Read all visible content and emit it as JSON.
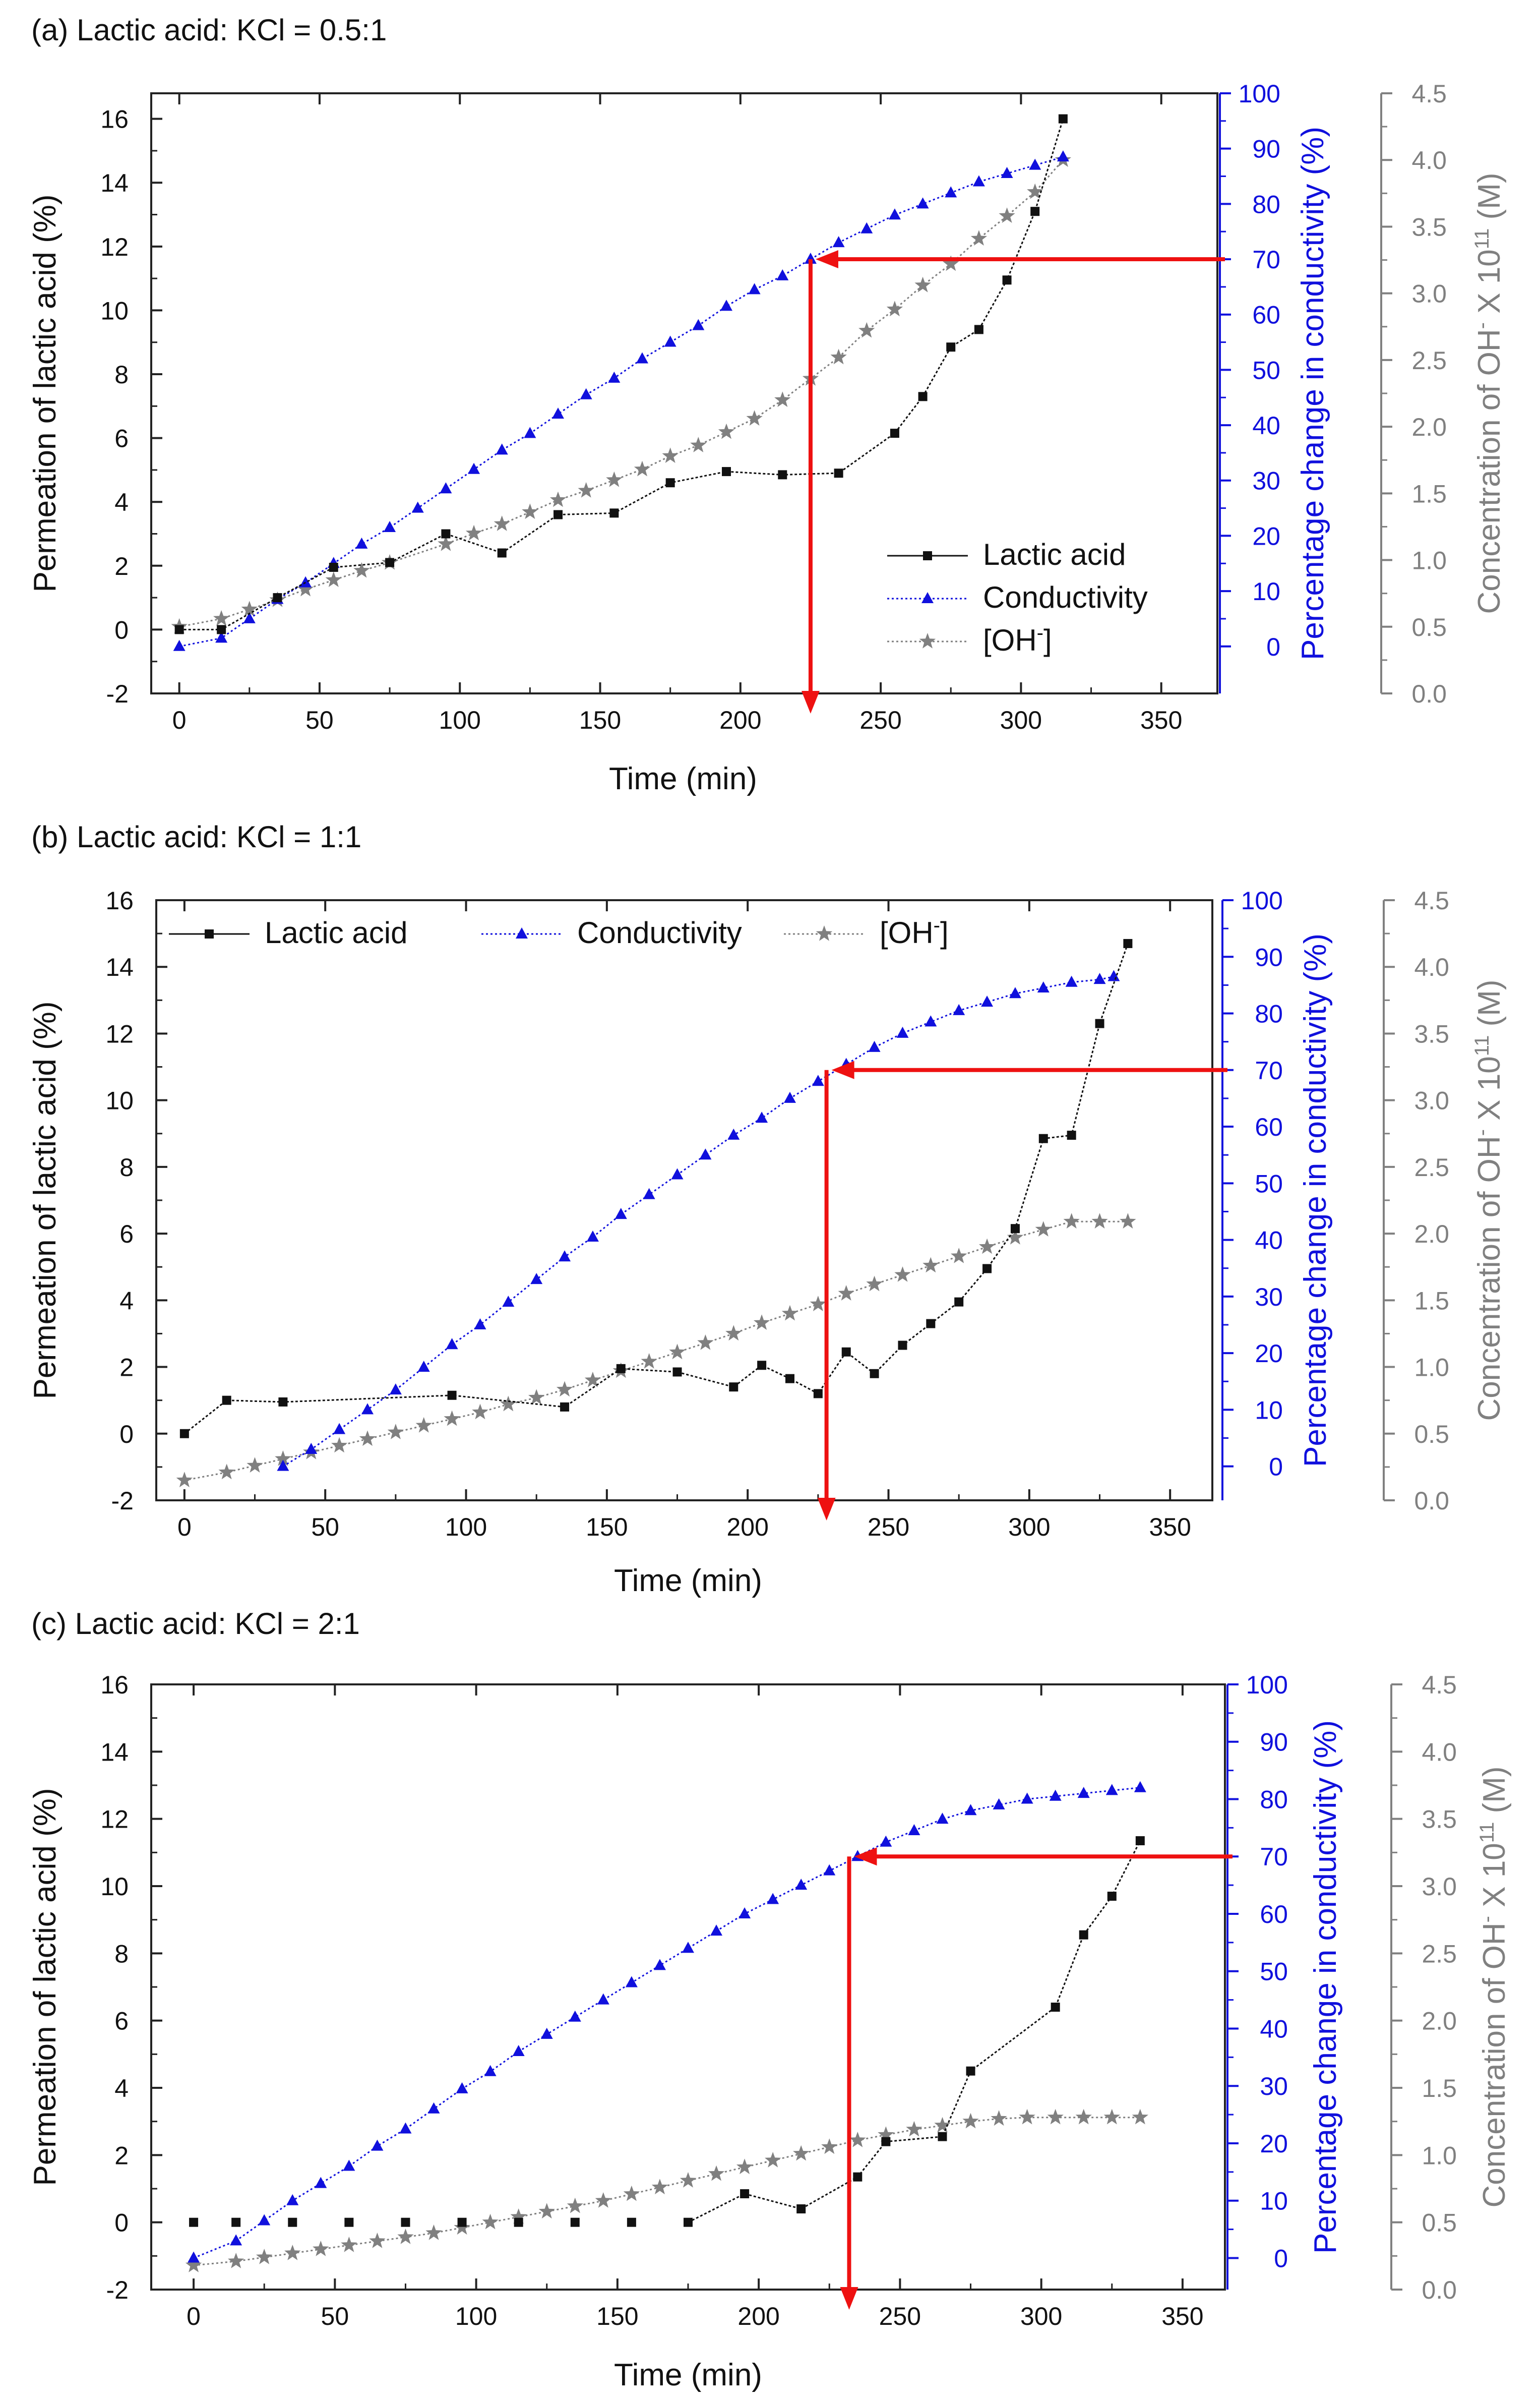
{
  "colors": {
    "lactic": "#111111",
    "conductivity": "#1010dd",
    "oh": "#808080",
    "arrow": "#ee1111",
    "frame": "#222222"
  },
  "chart_data": [
    {
      "type": "line",
      "panel": "a",
      "title": "(a) Lactic acid: KCl = 0.5:1",
      "xlabel": "Time (min)",
      "ylabel_left": "Permeation of lactic acid (%)",
      "ylabel_right1": "Percentage change in conductivity (%)",
      "ylabel_right2_main": "Concentration of OH",
      "ylabel_right2_sup1": "-",
      "ylabel_right2_mid": " X 10",
      "ylabel_right2_sup2": "11",
      "ylabel_right2_end": " (M)",
      "xlim": [
        -10,
        370
      ],
      "ylim_left": [
        -2,
        16.8
      ],
      "ylim_right1": [
        -8.5,
        100
      ],
      "ylim_right2": [
        0,
        4.5
      ],
      "x_ticks": [
        0,
        50,
        100,
        150,
        200,
        250,
        300,
        350
      ],
      "left_ticks": [
        -2,
        0,
        2,
        4,
        6,
        8,
        10,
        12,
        14,
        16
      ],
      "right1_ticks": [
        0,
        10,
        20,
        30,
        40,
        50,
        60,
        70,
        80,
        90,
        100
      ],
      "right2_ticks": [
        "0.0",
        "0.5",
        "1.0",
        "1.5",
        "2.0",
        "2.5",
        "3.0",
        "3.5",
        "4.0",
        "4.5"
      ],
      "legend": {
        "placement": "bottom-right",
        "entries": [
          {
            "label": "Lactic acid",
            "sup": ""
          },
          {
            "label": "Conductivity",
            "sup": ""
          },
          {
            "label": "[OH",
            "sup": "-",
            "suffix": "]"
          }
        ]
      },
      "series": [
        {
          "name": "Lactic acid",
          "axis": "left",
          "marker": "square",
          "dotted": true,
          "x": [
            0,
            15,
            35,
            55,
            75,
            95,
            115,
            135,
            155,
            175,
            195,
            215,
            235,
            255,
            265,
            275,
            285,
            295,
            305,
            315
          ],
          "y": [
            0,
            0,
            1.0,
            1.95,
            2.1,
            3.0,
            2.4,
            3.6,
            3.65,
            4.6,
            4.95,
            4.85,
            4.9,
            6.15,
            7.3,
            8.85,
            9.4,
            10.95,
            13.1,
            16.0
          ]
        },
        {
          "name": "Conductivity",
          "axis": "right1",
          "marker": "triangle",
          "dotted": true,
          "x": [
            0,
            15,
            25,
            35,
            45,
            55,
            65,
            75,
            85,
            95,
            105,
            115,
            125,
            135,
            145,
            155,
            165,
            175,
            185,
            195,
            205,
            215,
            225,
            235,
            245,
            255,
            265,
            275,
            285,
            295,
            305,
            315
          ],
          "y": [
            0,
            1.5,
            5,
            8.5,
            11.5,
            15,
            18.5,
            21.5,
            25,
            28.5,
            32,
            35.5,
            38.5,
            42,
            45.5,
            48.5,
            52,
            55,
            58,
            61.5,
            64.5,
            67,
            70,
            73,
            75.5,
            78,
            80,
            82,
            84,
            85.5,
            87,
            88.5
          ]
        },
        {
          "name": "[OH-]",
          "axis": "right2",
          "marker": "star",
          "dotted": true,
          "x": [
            0,
            15,
            25,
            35,
            45,
            55,
            65,
            75,
            95,
            105,
            115,
            125,
            135,
            145,
            155,
            165,
            175,
            185,
            195,
            205,
            215,
            225,
            235,
            245,
            255,
            265,
            275,
            285,
            295,
            305,
            315
          ],
          "y": [
            0.5,
            0.56,
            0.63,
            0.7,
            0.78,
            0.85,
            0.92,
            0.98,
            1.12,
            1.2,
            1.27,
            1.36,
            1.45,
            1.52,
            1.6,
            1.68,
            1.78,
            1.86,
            1.96,
            2.06,
            2.2,
            2.36,
            2.52,
            2.72,
            2.88,
            3.06,
            3.22,
            3.41,
            3.58,
            3.76,
            4.0
          ]
        }
      ],
      "annotation": {
        "x": 225,
        "conductivity": 70,
        "description": "arrows"
      }
    },
    {
      "type": "line",
      "panel": "b",
      "title": "(b) Lactic acid: KCl = 1:1",
      "xlabel": "Time (min)",
      "ylabel_left": "Permeation of lactic acid (%)",
      "ylabel_right1": "Percentage change in conductivity (%)",
      "ylabel_right2_main": "Concentration of OH",
      "ylabel_right2_sup1": "-",
      "ylabel_right2_mid": " X 10",
      "ylabel_right2_sup2": "11",
      "ylabel_right2_end": " (M)",
      "xlim": [
        -10,
        365
      ],
      "ylim_left": [
        -2,
        16
      ],
      "ylim_right1": [
        -6,
        100
      ],
      "ylim_right2": [
        0,
        4.5
      ],
      "x_ticks": [
        0,
        50,
        100,
        150,
        200,
        250,
        300,
        350
      ],
      "left_ticks": [
        -2,
        0,
        2,
        4,
        6,
        8,
        10,
        12,
        14,
        16
      ],
      "right1_ticks": [
        0,
        10,
        20,
        30,
        40,
        50,
        60,
        70,
        80,
        90,
        100
      ],
      "right2_ticks": [
        "0.0",
        "0.5",
        "1.0",
        "1.5",
        "2.0",
        "2.5",
        "3.0",
        "3.5",
        "4.0",
        "4.5"
      ],
      "legend": {
        "placement": "top-left",
        "entries": [
          {
            "label": "Lactic acid",
            "sup": ""
          },
          {
            "label": "Conductivity",
            "sup": ""
          },
          {
            "label": "[OH",
            "sup": "-",
            "suffix": "]"
          }
        ]
      },
      "series": [
        {
          "name": "Lactic acid",
          "axis": "left",
          "marker": "square",
          "dotted": true,
          "x": [
            0,
            15,
            35,
            95,
            135,
            155,
            175,
            195,
            205,
            215,
            225,
            235,
            245,
            255,
            265,
            275,
            285,
            295,
            305,
            315,
            325,
            335
          ],
          "y": [
            0,
            1.0,
            0.95,
            1.15,
            0.8,
            1.95,
            1.85,
            1.4,
            2.05,
            1.65,
            1.2,
            2.45,
            1.8,
            2.65,
            3.3,
            3.95,
            4.95,
            6.15,
            8.85,
            8.95,
            12.3,
            14.7
          ]
        },
        {
          "name": "Conductivity",
          "axis": "right1",
          "marker": "triangle",
          "dotted": true,
          "x": [
            35,
            45,
            55,
            65,
            75,
            85,
            95,
            105,
            115,
            125,
            135,
            145,
            155,
            165,
            175,
            185,
            195,
            205,
            215,
            225,
            235,
            245,
            255,
            265,
            275,
            285,
            295,
            305,
            315,
            325,
            330
          ],
          "y": [
            0,
            3,
            6.5,
            10,
            13.5,
            17.5,
            21.5,
            25,
            29,
            33,
            37,
            40.5,
            44.5,
            48,
            51.5,
            55,
            58.5,
            61.5,
            65,
            68,
            71,
            74,
            76.5,
            78.5,
            80.5,
            82,
            83.5,
            84.5,
            85.5,
            86,
            86.5
          ]
        },
        {
          "name": "[OH-]",
          "axis": "right2",
          "marker": "star",
          "dotted": true,
          "x": [
            0,
            15,
            25,
            35,
            45,
            55,
            65,
            75,
            85,
            95,
            105,
            115,
            125,
            135,
            145,
            155,
            165,
            175,
            185,
            195,
            205,
            215,
            225,
            235,
            245,
            255,
            265,
            275,
            285,
            295,
            305,
            315,
            325,
            335
          ],
          "y": [
            0.15,
            0.21,
            0.26,
            0.31,
            0.36,
            0.41,
            0.46,
            0.51,
            0.56,
            0.61,
            0.66,
            0.72,
            0.77,
            0.83,
            0.9,
            0.97,
            1.04,
            1.11,
            1.18,
            1.25,
            1.33,
            1.4,
            1.47,
            1.55,
            1.62,
            1.69,
            1.76,
            1.83,
            1.9,
            1.97,
            2.03,
            2.09,
            2.09,
            2.09
          ]
        }
      ],
      "annotation": {
        "x": 228,
        "conductivity": 70,
        "description": "arrows"
      }
    },
    {
      "type": "line",
      "panel": "c",
      "title": "(c) Lactic acid: KCl = 2:1",
      "xlabel": "Time (min)",
      "ylabel_left": "Permeation of lactic acid (%)",
      "ylabel_right1": "Percentage change in conductivity (%)",
      "ylabel_right2_main": "Concentration of OH",
      "ylabel_right2_sup1": "-",
      "ylabel_right2_mid": " X 10",
      "ylabel_right2_sup2": "11",
      "ylabel_right2_end": " (M)",
      "xlim": [
        -15,
        365
      ],
      "ylim_left": [
        -2,
        16
      ],
      "ylim_right1": [
        -5.5,
        100
      ],
      "ylim_right2": [
        0,
        4.5
      ],
      "x_ticks": [
        0,
        50,
        100,
        150,
        200,
        250,
        300,
        350
      ],
      "left_ticks": [
        -2,
        0,
        2,
        4,
        6,
        8,
        10,
        12,
        14,
        16
      ],
      "right1_ticks": [
        0,
        10,
        20,
        30,
        40,
        50,
        60,
        70,
        80,
        90,
        100
      ],
      "right2_ticks": [
        "0.0",
        "0.5",
        "1.0",
        "1.5",
        "2.0",
        "2.5",
        "3.0",
        "3.5",
        "4.0",
        "4.5"
      ],
      "legend": null,
      "series": [
        {
          "name": "Lactic acid",
          "axis": "left",
          "marker": "square",
          "dotted": true,
          "gap_before_index": 9,
          "x": [
            0,
            15,
            35,
            55,
            75,
            95,
            115,
            135,
            155,
            175,
            195,
            215,
            235,
            245,
            265,
            275,
            305,
            315,
            325,
            335
          ],
          "y": [
            0,
            0,
            0,
            0,
            0,
            0,
            0,
            0,
            0,
            0,
            0.85,
            0.4,
            1.35,
            2.4,
            2.55,
            4.5,
            6.4,
            8.55,
            9.7,
            11.35
          ]
        },
        {
          "name": "Conductivity",
          "axis": "right1",
          "marker": "triangle",
          "dotted": true,
          "x": [
            0,
            15,
            25,
            35,
            45,
            55,
            65,
            75,
            85,
            95,
            105,
            115,
            125,
            135,
            145,
            155,
            165,
            175,
            185,
            195,
            205,
            215,
            225,
            235,
            245,
            255,
            265,
            275,
            285,
            295,
            305,
            315,
            325,
            335
          ],
          "y": [
            0,
            3,
            6.5,
            10,
            13,
            16,
            19.5,
            22.5,
            26,
            29.5,
            32.5,
            36,
            39,
            42,
            45,
            48,
            51,
            54,
            57,
            60,
            62.5,
            65,
            67.5,
            70,
            72.5,
            74.5,
            76.5,
            78,
            79,
            80,
            80.5,
            81,
            81.5,
            82
          ]
        },
        {
          "name": "[OH-]",
          "axis": "right2",
          "marker": "star",
          "dotted": true,
          "x": [
            0,
            15,
            25,
            35,
            45,
            55,
            65,
            75,
            85,
            95,
            105,
            115,
            125,
            135,
            145,
            155,
            165,
            175,
            185,
            195,
            205,
            215,
            225,
            235,
            245,
            255,
            265,
            275,
            285,
            295,
            305,
            315,
            325,
            335
          ],
          "y": [
            0.18,
            0.21,
            0.24,
            0.27,
            0.3,
            0.33,
            0.36,
            0.39,
            0.42,
            0.46,
            0.5,
            0.54,
            0.58,
            0.62,
            0.66,
            0.71,
            0.76,
            0.81,
            0.86,
            0.91,
            0.96,
            1.01,
            1.06,
            1.11,
            1.15,
            1.19,
            1.22,
            1.25,
            1.27,
            1.28,
            1.28,
            1.28,
            1.28,
            1.28
          ]
        }
      ],
      "annotation": {
        "x": 232,
        "conductivity": 70,
        "description": "arrows"
      }
    }
  ]
}
